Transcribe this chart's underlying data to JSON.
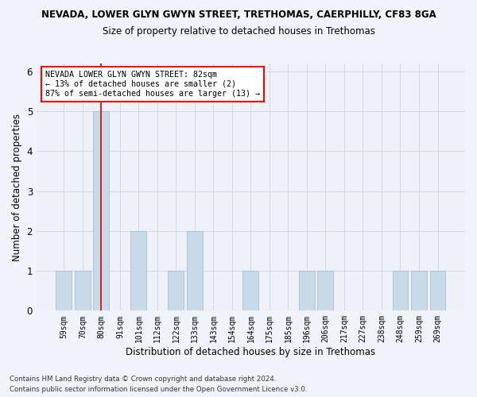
{
  "title_line1": "NEVADA, LOWER GLYN GWYN STREET, TRETHOMAS, CAERPHILLY, CF83 8GA",
  "title_line2": "Size of property relative to detached houses in Trethomas",
  "xlabel": "Distribution of detached houses by size in Trethomas",
  "ylabel": "Number of detached properties",
  "categories": [
    "59sqm",
    "70sqm",
    "80sqm",
    "91sqm",
    "101sqm",
    "112sqm",
    "122sqm",
    "133sqm",
    "143sqm",
    "154sqm",
    "164sqm",
    "175sqm",
    "185sqm",
    "196sqm",
    "206sqm",
    "217sqm",
    "227sqm",
    "238sqm",
    "248sqm",
    "259sqm",
    "269sqm"
  ],
  "values": [
    1,
    1,
    5,
    0,
    2,
    0,
    1,
    2,
    0,
    0,
    1,
    0,
    0,
    1,
    1,
    0,
    0,
    0,
    1,
    1,
    1
  ],
  "bar_color": "#c8d9e8",
  "bar_edge_color": "#a0b8cc",
  "vline_x": 2,
  "vline_color": "#cc0000",
  "annotation_text_line1": "NEVADA LOWER GLYN GWYN STREET: 82sqm",
  "annotation_text_line2": "← 13% of detached houses are smaller (2)",
  "annotation_text_line3": "87% of semi-detached houses are larger (13) →",
  "ylim": [
    0,
    6.2
  ],
  "yticks": [
    0,
    1,
    2,
    3,
    4,
    5,
    6
  ],
  "footnote1": "Contains HM Land Registry data © Crown copyright and database right 2024.",
  "footnote2": "Contains public sector information licensed under the Open Government Licence v3.0.",
  "bg_color": "#f0f4fa",
  "plot_bg_color": "#eef2f8",
  "grid_color": "#d0d8e8"
}
